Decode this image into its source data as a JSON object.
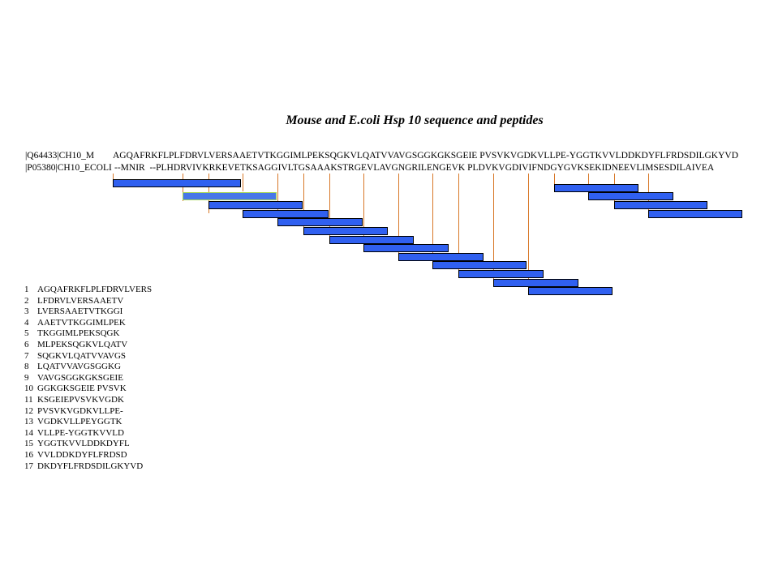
{
  "title": "Mouse and E.coli Hsp 10 sequence and peptides",
  "sequences": [
    {
      "label": "|Q64433|CH10_M",
      "sequence": "AGQAFRKFLPLFDRVLVERSAAETVTKGGIMLPEKSQGKVLQATVVAVGSGGKGKSGEIE PVSVKVGDKVLLPE-YGGTKVVLDDKDYFLFRDSDILGKYVD"
    },
    {
      "label": "|P05380|CH10_ECOLI",
      "sequence": "--MNIR  --PLHDRVIVKRKEVETKSAGGIVLTGSAAAKSTRGEVLAVGNGRILENGEVK PLDVKVGDIVIFNDGYGVKSEKIDNEEVLIMSESDILAIVEA"
    }
  ],
  "peptides": [
    {
      "num": "1",
      "seq": "AGQAFRKFLPLFDRVLVERS",
      "highlight": false
    },
    {
      "num": "2",
      "seq": "LFDRVLVERSAAETV",
      "highlight": true
    },
    {
      "num": "3",
      "seq": "LVERSAAETVTKGGI",
      "highlight": false
    },
    {
      "num": "4",
      "seq": "AAETVTKGGIMLPEK",
      "highlight": false
    },
    {
      "num": "5",
      "seq": "TKGGIMLPEKSQGK",
      "highlight": false
    },
    {
      "num": "6",
      "seq": "MLPEKSQGKVLQATV",
      "highlight": false
    },
    {
      "num": "7",
      "seq": "SQGKVLQATVVAVGS",
      "highlight": false
    },
    {
      "num": "8",
      "seq": "LQATVVAVGSGGKG",
      "highlight": false
    },
    {
      "num": "9",
      "seq": "VAVGSGGKGKSGEIE",
      "highlight": false
    },
    {
      "num": "10",
      "seq": "GGKGKSGEIE PVSVK",
      "highlight": false
    },
    {
      "num": "11",
      "seq": "KSGEIEPVSVKVGDK",
      "highlight": false
    },
    {
      "num": "12",
      "seq": "PVSVKVGDKVLLPE-",
      "highlight": false
    },
    {
      "num": "13",
      "seq": "VGDKVLLPEYGGTK",
      "highlight": false
    },
    {
      "num": "14",
      "seq": "VLLPE-YGGTKVVLD",
      "highlight": false
    },
    {
      "num": "15",
      "seq": "YGGTKVVLDDKDYFL",
      "highlight": false
    },
    {
      "num": "16",
      "seq": "VVLDDKDYFLFRDSD",
      "highlight": false
    },
    {
      "num": "17",
      "seq": "DKDYFLFRDSDILGKYVD",
      "highlight": false
    }
  ],
  "colors": {
    "bar": "#3060f0",
    "bar_outline": "#000000",
    "highlight_outline": "#a8d850",
    "guide_line": "#d87828"
  }
}
